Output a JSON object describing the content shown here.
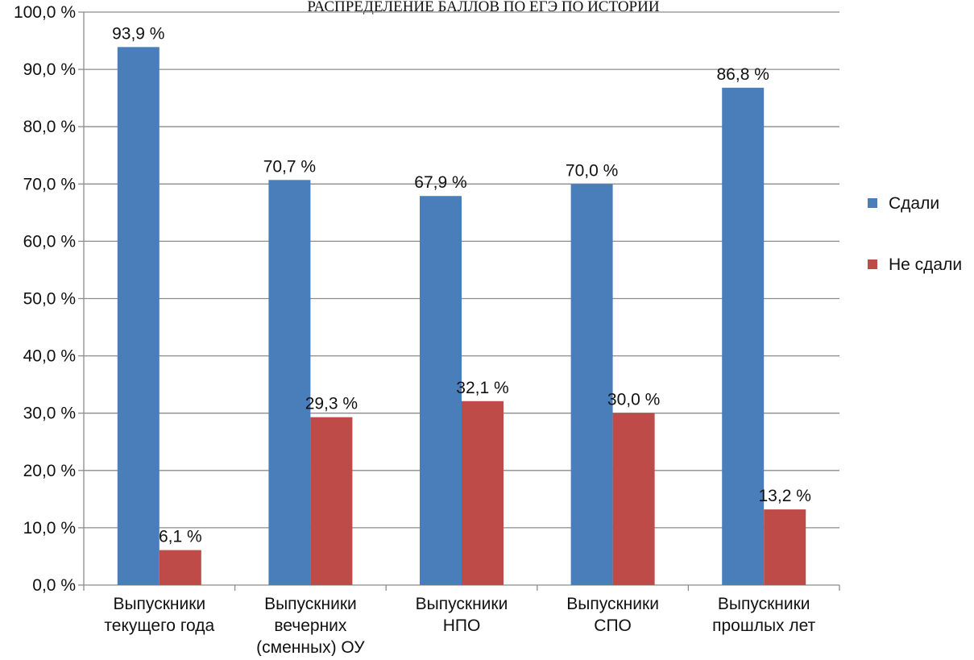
{
  "chart_data": {
    "type": "bar",
    "title": "РАСПРЕДЕЛЕНИЕ БАЛЛОВ ПО ЕГЭ ПО ИСТОРИИ",
    "xlabel": "",
    "ylabel": "",
    "ylim": [
      0,
      100
    ],
    "y_ticks": [
      "0,0 %",
      "10,0 %",
      "20,0 %",
      "30,0 %",
      "40,0 %",
      "50,0 %",
      "60,0 %",
      "70,0 %",
      "80,0 %",
      "90,0 %",
      "100,0 %"
    ],
    "grid": true,
    "legend_position": "right",
    "categories": [
      [
        "Выпускники",
        "текущего года"
      ],
      [
        "Выпускники",
        "вечерних",
        "(сменных) ОУ"
      ],
      [
        "Выпускники",
        "НПО"
      ],
      [
        "Выпускники",
        "СПО"
      ],
      [
        "Выпускники",
        "прошлых лет"
      ]
    ],
    "series": [
      {
        "name": "Сдали",
        "color": "#4a7ebb",
        "values": [
          93.9,
          70.7,
          67.9,
          70.0,
          86.8
        ],
        "labels": [
          "93,9 %",
          "70,7 %",
          "67,9 %",
          "70,0 %",
          "86,8 %"
        ]
      },
      {
        "name": "Не сдали",
        "color": "#be4b48",
        "values": [
          6.1,
          29.3,
          32.1,
          30.0,
          13.2
        ],
        "labels": [
          "6,1 %",
          "29,3 %",
          "32,1 %",
          "30,0 %",
          "13,2 %"
        ]
      }
    ]
  }
}
